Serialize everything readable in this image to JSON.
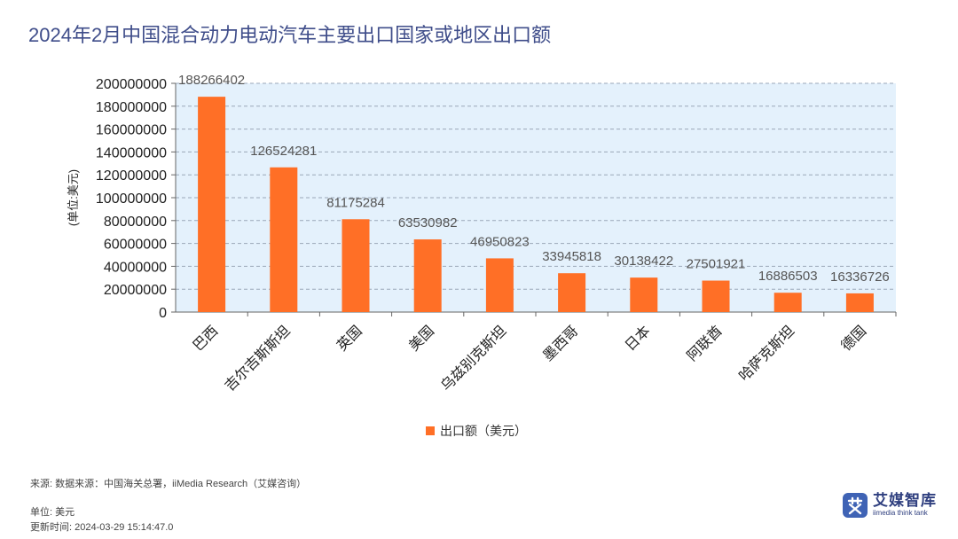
{
  "page": {
    "title": "2024年2月中国混合动力电动汽车主要出口国家或地区出口额"
  },
  "chart_data": {
    "type": "bar",
    "title": "2024年2月中国混合动力电动汽车主要出口国家或地区出口额",
    "ylabel": "(单位:美元)",
    "xlabel": "",
    "ylim": [
      0,
      200000000
    ],
    "yticks": [
      0,
      20000000,
      40000000,
      60000000,
      80000000,
      100000000,
      120000000,
      140000000,
      160000000,
      180000000,
      200000000
    ],
    "grid": true,
    "legend_position": "bottom-center",
    "categories": [
      "巴西",
      "吉尔吉斯斯坦",
      "英国",
      "美国",
      "乌兹别克斯坦",
      "墨西哥",
      "日本",
      "阿联酋",
      "哈萨克斯坦",
      "德国"
    ],
    "series": [
      {
        "name": "出口额（美元）",
        "color": "#ff6f26",
        "values": [
          188266402,
          126524281,
          81175284,
          63530982,
          46950823,
          33945818,
          30138422,
          27501921,
          16886503,
          16336726
        ]
      }
    ],
    "plot_background": "#e4f1fc"
  },
  "footer": {
    "source": "来源: 数据来源：中国海关总署，iiMedia Research（艾媒咨询）",
    "unit": "单位: 美元",
    "updated": "更新时间: 2024-03-29 15:14:47.0"
  },
  "logo": {
    "cn": "艾媒智库",
    "en": "iimedia think tank",
    "mark_glyph": "艾",
    "icon": "iimedia-logo-icon"
  }
}
